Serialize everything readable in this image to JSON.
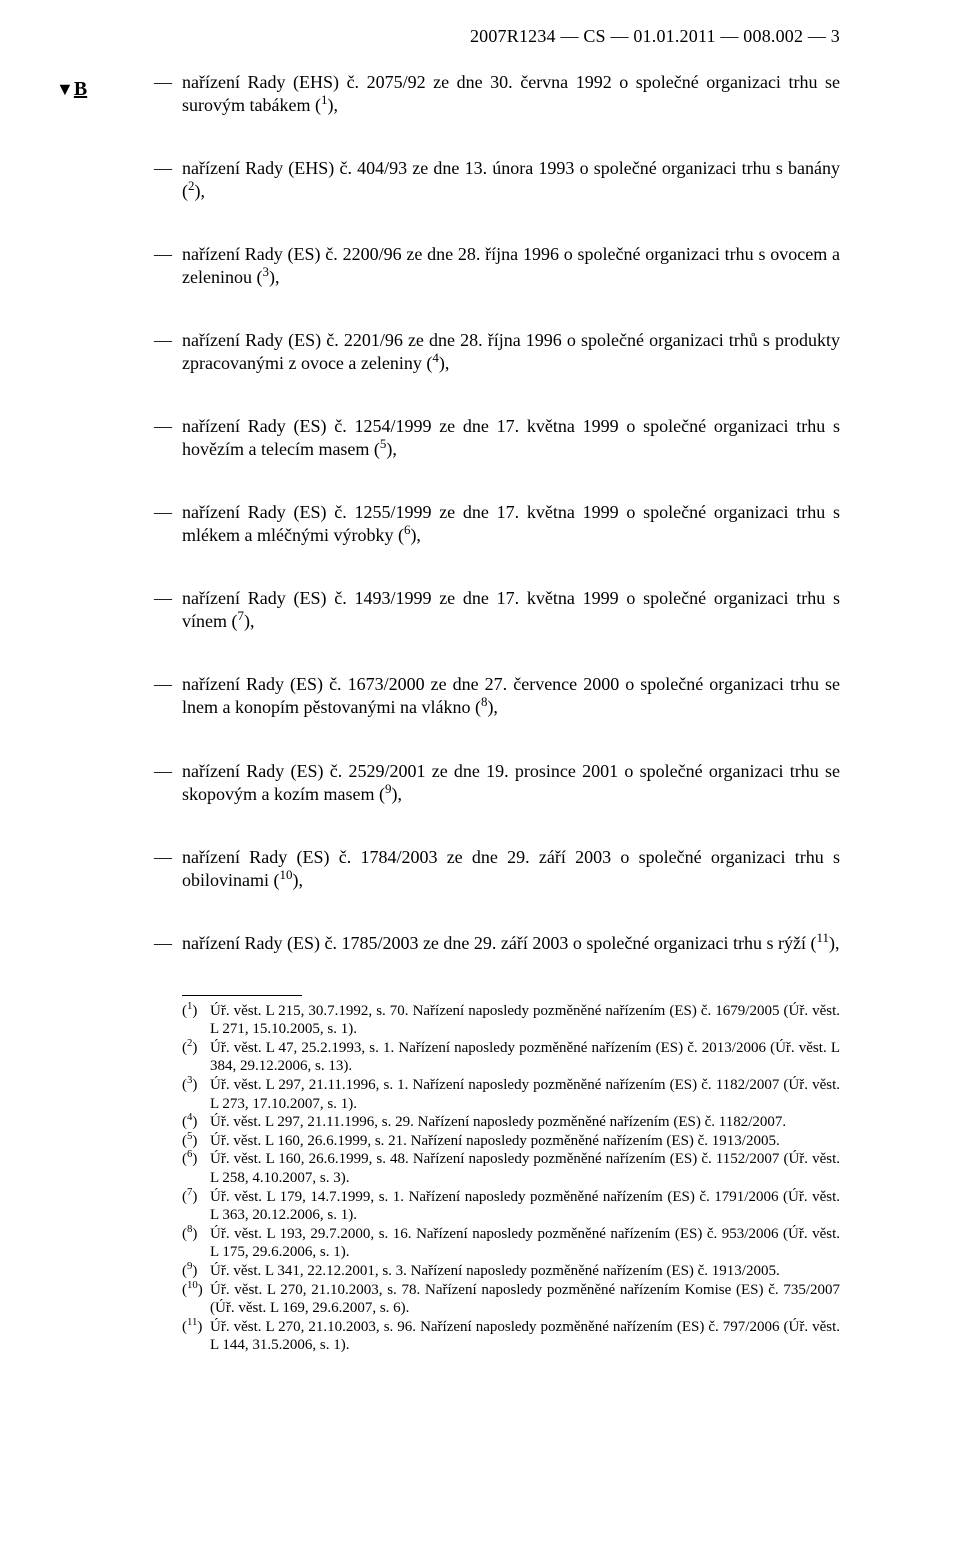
{
  "header": "2007R1234 — CS — 01.01.2011 — 008.002 — 3",
  "section_mark": {
    "triangle": "▼",
    "letter": "B"
  },
  "items": [
    {
      "prefix": "nařízení Rady (EHS) č. 2075/92 ze dne 30. června 1992 o společné organizaci trhu se surovým tabákem (",
      "sup": "1",
      "suffix": "),"
    },
    {
      "prefix": "nařízení Rady (EHS) č. 404/93 ze dne 13. února 1993 o společné organizaci trhu s banány (",
      "sup": "2",
      "suffix": "),"
    },
    {
      "prefix": "nařízení Rady (ES) č. 2200/96 ze dne 28. října 1996 o společné organizaci trhu s ovocem a zeleninou (",
      "sup": "3",
      "suffix": "),"
    },
    {
      "prefix": "nařízení Rady (ES) č. 2201/96 ze dne 28. října 1996 o společné organizaci trhů s produkty zpracovanými z ovoce a zeleniny (",
      "sup": "4",
      "suffix": "),"
    },
    {
      "prefix": "nařízení Rady (ES) č. 1254/1999 ze dne 17. května 1999 o společné organizaci trhu s hovězím a telecím masem (",
      "sup": "5",
      "suffix": "),"
    },
    {
      "prefix": "nařízení Rady (ES) č. 1255/1999 ze dne 17. května 1999 o společné organizaci trhu s mlékem a mléčnými výrobky (",
      "sup": "6",
      "suffix": "),"
    },
    {
      "prefix": "nařízení Rady (ES) č. 1493/1999 ze dne 17. května 1999 o společné organizaci trhu s vínem (",
      "sup": "7",
      "suffix": "),"
    },
    {
      "prefix": "nařízení Rady (ES) č. 1673/2000 ze dne 27. července 2000 o společné organizaci trhu se lnem a konopím pěstovanými na vlákno (",
      "sup": "8",
      "suffix": "),"
    },
    {
      "prefix": "nařízení Rady (ES) č. 2529/2001 ze dne 19. prosince 2001 o společné organizaci trhu se skopovým a kozím masem (",
      "sup": "9",
      "suffix": "),"
    },
    {
      "prefix": "nařízení Rady (ES) č. 1784/2003 ze dne 29. září 2003 o společné organizaci trhu s obilovinami (",
      "sup": "10",
      "suffix": "),"
    },
    {
      "prefix": "nařízení Rady (ES) č. 1785/2003 ze dne 29. září 2003 o společné organizaci trhu s rýží (",
      "sup": "11",
      "suffix": "),"
    }
  ],
  "footnotes": [
    {
      "mark": "1",
      "text": "Úř. věst. L 215, 30.7.1992, s. 70. Nařízení naposledy pozměněné nařízením (ES) č. 1679/2005 (Úř. věst. L 271, 15.10.2005, s. 1)."
    },
    {
      "mark": "2",
      "text": "Úř. věst. L 47, 25.2.1993, s. 1. Nařízení naposledy pozměněné nařízením (ES) č. 2013/2006 (Úř. věst. L 384, 29.12.2006, s. 13)."
    },
    {
      "mark": "3",
      "text": "Úř. věst. L 297, 21.11.1996, s. 1. Nařízení naposledy pozměněné nařízením (ES) č. 1182/2007 (Úř. věst. L 273, 17.10.2007, s. 1)."
    },
    {
      "mark": "4",
      "text": "Úř. věst. L 297, 21.11.1996, s. 29. Nařízení naposledy pozměněné nařízením (ES) č. 1182/2007."
    },
    {
      "mark": "5",
      "text": "Úř. věst. L 160, 26.6.1999, s. 21. Nařízení naposledy pozměněné nařízením (ES) č. 1913/2005."
    },
    {
      "mark": "6",
      "text": "Úř. věst. L 160, 26.6.1999, s. 48. Nařízení naposledy pozměněné nařízením (ES) č. 1152/2007 (Úř. věst. L 258, 4.10.2007, s. 3)."
    },
    {
      "mark": "7",
      "text": "Úř. věst. L 179, 14.7.1999, s. 1. Nařízení naposledy pozměněné nařízením (ES) č. 1791/2006 (Úř. věst. L 363, 20.12.2006, s. 1)."
    },
    {
      "mark": "8",
      "text": "Úř. věst. L 193, 29.7.2000, s. 16. Nařízení naposledy pozměněné nařízením (ES) č. 953/2006 (Úř. věst. L 175, 29.6.2006, s. 1)."
    },
    {
      "mark": "9",
      "text": "Úř. věst. L 341, 22.12.2001, s. 3. Nařízení naposledy pozměněné nařízením (ES) č. 1913/2005."
    },
    {
      "mark": "10",
      "text": "Úř. věst. L 270, 21.10.2003, s. 78. Nařízení naposledy pozměněné nařízením Komise (ES) č. 735/2007 (Úř. věst. L 169, 29.6.2007, s. 6)."
    },
    {
      "mark": "11",
      "text": "Úř. věst. L 270, 21.10.2003, s. 96. Nařízení naposledy pozměněné nařízením (ES) č. 797/2006 (Úř. věst. L 144, 31.5.2006, s. 1)."
    }
  ]
}
